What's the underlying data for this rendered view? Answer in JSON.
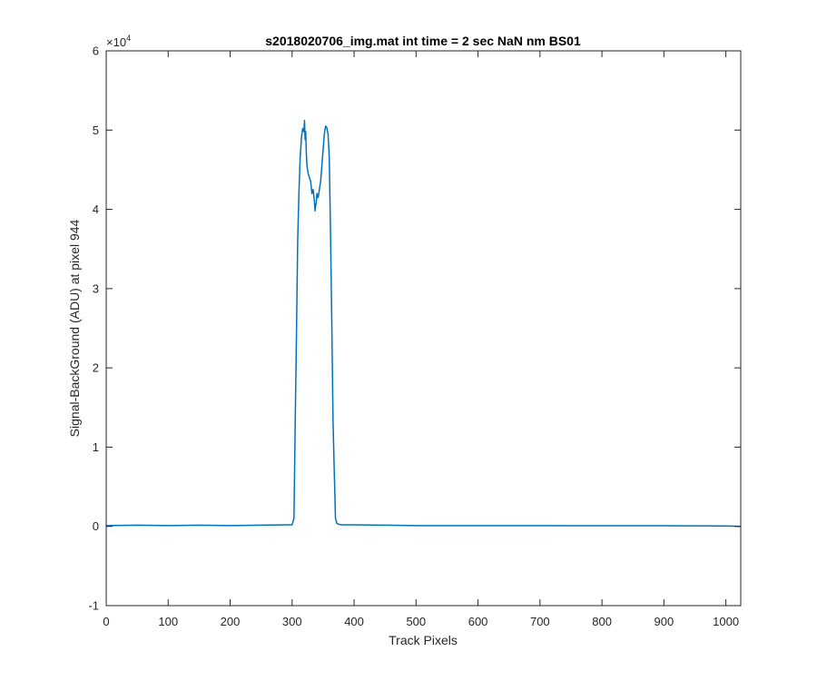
{
  "chart_data": {
    "type": "line",
    "title": "s2018020706_img.mat int time = 2 sec  NaN nm BS01",
    "xlabel": "Track Pixels",
    "ylabel": "Signal-BackGround (ADU) at pixel 944",
    "xlim": [
      0,
      1024
    ],
    "ylim": [
      -1,
      6
    ],
    "y_exponent_base": "×10",
    "y_exponent_power": "4",
    "x_ticks": [
      0,
      100,
      200,
      300,
      400,
      500,
      600,
      700,
      800,
      900,
      1000
    ],
    "x_tick_labels": [
      "0",
      "100",
      "200",
      "300",
      "400",
      "500",
      "600",
      "700",
      "800",
      "900",
      "1000"
    ],
    "y_ticks": [
      -1,
      0,
      1,
      2,
      3,
      4,
      5,
      6
    ],
    "y_tick_labels": [
      "-1",
      "0",
      "1",
      "2",
      "3",
      "4",
      "5",
      "6"
    ],
    "grid": false,
    "box": true,
    "line_color": "#0072BD",
    "axis_color": "#262626",
    "series": [
      {
        "x": [
          0,
          50,
          100,
          150,
          200,
          250,
          290,
          300,
          303,
          305,
          307,
          309,
          311,
          313,
          315,
          317,
          319,
          320,
          321,
          322,
          323,
          324,
          326,
          328,
          330,
          332,
          334,
          336,
          337,
          338,
          339,
          340,
          342,
          344,
          346,
          348,
          350,
          352,
          354,
          356,
          358,
          360,
          362,
          364,
          366,
          368,
          370,
          372,
          374,
          376,
          380,
          400,
          450,
          500,
          600,
          700,
          800,
          900,
          1000,
          1024
        ],
        "y": [
          0.01,
          0.015,
          0.01,
          0.015,
          0.01,
          0.015,
          0.02,
          0.02,
          0.1,
          1.3,
          2.4,
          3.6,
          4.2,
          4.65,
          4.9,
          5.02,
          4.98,
          5.12,
          4.88,
          4.98,
          4.7,
          4.55,
          4.45,
          4.4,
          4.35,
          4.2,
          4.25,
          4.1,
          3.98,
          4.05,
          4.08,
          4.2,
          4.15,
          4.25,
          4.35,
          4.55,
          4.75,
          4.95,
          5.05,
          5.03,
          4.95,
          4.65,
          3.7,
          2.6,
          1.35,
          0.7,
          0.1,
          0.04,
          0.03,
          0.025,
          0.02,
          0.02,
          0.015,
          0.01,
          0.01,
          0.01,
          0.008,
          0.008,
          0.005,
          0.0
        ]
      }
    ]
  }
}
